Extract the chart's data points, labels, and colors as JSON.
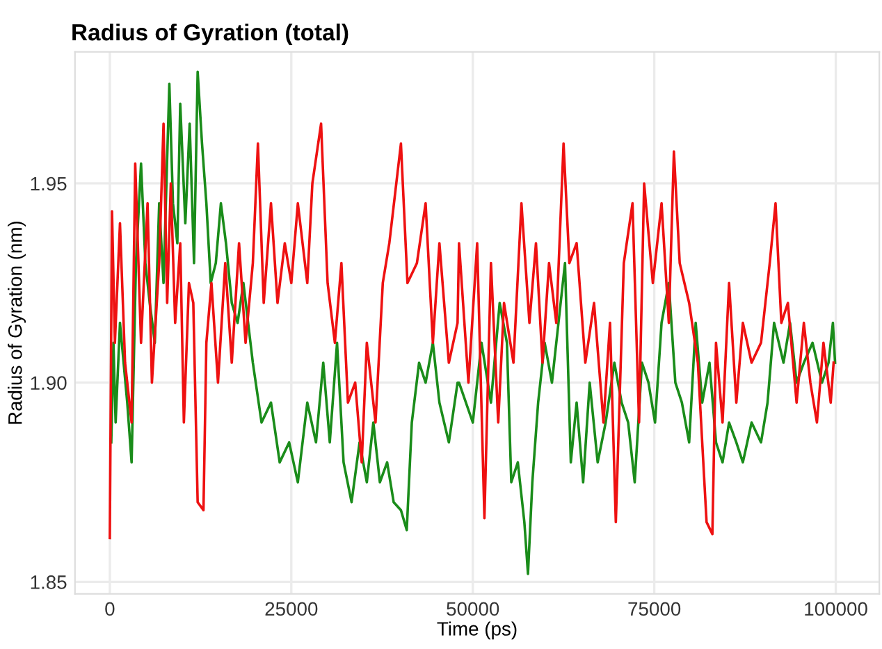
{
  "chart_data": {
    "type": "line",
    "title": "Radius of Gyration (total)",
    "xlabel": "Time (ps)",
    "ylabel": "Radius of Gyration (nm)",
    "xlim": [
      -4800,
      106000
    ],
    "ylim": [
      1.847,
      1.983
    ],
    "xticks": [
      0,
      25000,
      50000,
      75000,
      100000
    ],
    "yticks": [
      1.85,
      {
        "value": 1.9,
        "label": "1.90"
      },
      1.95
    ],
    "grid": true,
    "marker": "none",
    "line_style": "solid",
    "series": [
      {
        "color": "#1a8c1a",
        "x": [
          200,
          500,
          800,
          1400,
          2400,
          3000,
          3600,
          4300,
          4900,
          5500,
          6200,
          6800,
          7400,
          8200,
          8700,
          9300,
          9700,
          10400,
          11000,
          11600,
          12100,
          12700,
          13300,
          13900,
          14600,
          15300,
          16000,
          16800,
          17600,
          18400,
          19700,
          20900,
          22200,
          23400,
          24700,
          25900,
          27200,
          28400,
          29400,
          30300,
          31300,
          32200,
          33300,
          34400,
          35400,
          36300,
          37200,
          38200,
          39100,
          40100,
          40900,
          41600,
          42600,
          43500,
          44500,
          45400,
          46700,
          47900,
          48100,
          50000,
          51200,
          52500,
          53700,
          54700,
          55300,
          56200,
          57100,
          57600,
          58200,
          59000,
          59900,
          60900,
          61800,
          62700,
          63500,
          64300,
          65200,
          66100,
          67200,
          68300,
          69500,
          70500,
          71400,
          72300,
          73300,
          74200,
          75100,
          76000,
          77000,
          77900,
          78800,
          79800,
          80700,
          81600,
          82600,
          83500,
          84400,
          85300,
          86300,
          87200,
          88400,
          89700,
          90600,
          91500,
          92800,
          93700,
          94600,
          95600,
          96800,
          98100,
          99000,
          99600,
          99900
        ],
        "values": [
          1.885,
          1.91,
          1.89,
          1.915,
          1.895,
          1.88,
          1.93,
          1.955,
          1.93,
          1.92,
          1.91,
          1.945,
          1.925,
          1.975,
          1.945,
          1.935,
          1.97,
          1.94,
          1.965,
          1.93,
          1.978,
          1.96,
          1.945,
          1.925,
          1.93,
          1.945,
          1.935,
          1.92,
          1.915,
          1.925,
          1.905,
          1.89,
          1.895,
          1.88,
          1.885,
          1.875,
          1.895,
          1.885,
          1.905,
          1.885,
          1.91,
          1.88,
          1.87,
          1.885,
          1.875,
          1.89,
          1.875,
          1.88,
          1.87,
          1.868,
          1.863,
          1.89,
          1.905,
          1.9,
          1.91,
          1.895,
          1.885,
          1.9,
          1.9,
          1.89,
          1.91,
          1.895,
          1.92,
          1.91,
          1.875,
          1.88,
          1.865,
          1.852,
          1.875,
          1.895,
          1.91,
          1.9,
          1.915,
          1.93,
          1.88,
          1.895,
          1.875,
          1.9,
          1.88,
          1.89,
          1.905,
          1.895,
          1.89,
          1.875,
          1.905,
          1.9,
          1.89,
          1.915,
          1.925,
          1.9,
          1.895,
          1.885,
          1.915,
          1.895,
          1.905,
          1.885,
          1.88,
          1.89,
          1.885,
          1.88,
          1.89,
          1.885,
          1.895,
          1.915,
          1.905,
          1.915,
          1.9,
          1.905,
          1.91,
          1.9,
          1.905,
          1.915,
          1.905
        ]
      },
      {
        "color": "#ee1111",
        "x": [
          0,
          300,
          700,
          1400,
          2100,
          3000,
          3500,
          4300,
          5200,
          5800,
          6800,
          7400,
          7900,
          8400,
          9000,
          9700,
          10200,
          10900,
          11500,
          12100,
          12900,
          13300,
          14000,
          14900,
          15900,
          16800,
          17800,
          18700,
          19700,
          20400,
          21200,
          22200,
          23100,
          24100,
          25000,
          25900,
          27200,
          27900,
          29100,
          30000,
          31000,
          31900,
          32800,
          33800,
          34700,
          35400,
          36600,
          37600,
          38500,
          40100,
          41000,
          42300,
          43500,
          44500,
          45400,
          46700,
          47900,
          48100,
          49400,
          50600,
          51600,
          52500,
          53500,
          54300,
          55600,
          56700,
          57800,
          58700,
          59600,
          60500,
          61500,
          62500,
          63300,
          64300,
          65500,
          66700,
          68000,
          68900,
          69700,
          70800,
          72000,
          72900,
          73600,
          74800,
          76000,
          77000,
          77700,
          78500,
          79800,
          81000,
          82200,
          83000,
          83500,
          84400,
          85300,
          86300,
          87200,
          88400,
          89700,
          90900,
          91700,
          92500,
          93400,
          94600,
          95600,
          96500,
          97400,
          98300,
          99300,
          99700
        ],
        "values": [
          1.861,
          1.943,
          1.91,
          1.94,
          1.905,
          1.89,
          1.955,
          1.91,
          1.945,
          1.9,
          1.93,
          1.965,
          1.92,
          1.95,
          1.915,
          1.935,
          1.89,
          1.925,
          1.92,
          1.87,
          1.868,
          1.91,
          1.925,
          1.9,
          1.93,
          1.905,
          1.935,
          1.91,
          1.93,
          1.96,
          1.92,
          1.945,
          1.92,
          1.935,
          1.925,
          1.945,
          1.925,
          1.95,
          1.965,
          1.925,
          1.91,
          1.93,
          1.895,
          1.9,
          1.88,
          1.91,
          1.89,
          1.925,
          1.935,
          1.96,
          1.925,
          1.93,
          1.945,
          1.91,
          1.935,
          1.905,
          1.915,
          1.935,
          1.9,
          1.935,
          1.866,
          1.93,
          1.89,
          1.92,
          1.905,
          1.945,
          1.915,
          1.935,
          1.905,
          1.93,
          1.915,
          1.96,
          1.93,
          1.935,
          1.905,
          1.92,
          1.89,
          1.915,
          1.865,
          1.93,
          1.945,
          1.89,
          1.95,
          1.925,
          1.945,
          1.915,
          1.958,
          1.93,
          1.92,
          1.905,
          1.865,
          1.862,
          1.91,
          1.89,
          1.925,
          1.895,
          1.915,
          1.905,
          1.91,
          1.93,
          1.945,
          1.915,
          1.92,
          1.895,
          1.915,
          1.9,
          1.89,
          1.91,
          1.895,
          1.905
        ]
      }
    ]
  }
}
